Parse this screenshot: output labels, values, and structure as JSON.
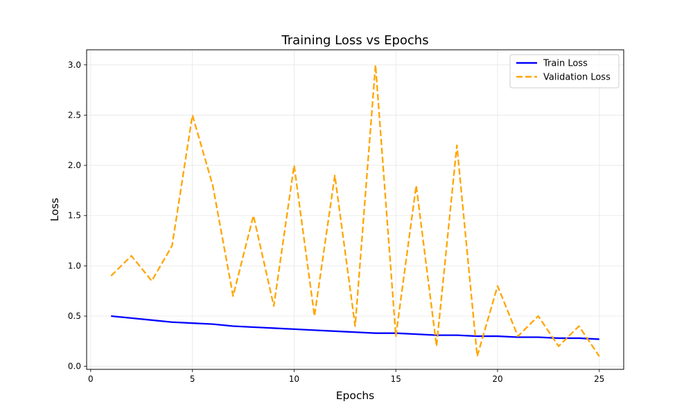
{
  "chart_data": {
    "type": "line",
    "title": "Training Loss vs Epochs",
    "xlabel": "Epochs",
    "ylabel": "Loss",
    "xlim": [
      -0.2,
      26.2
    ],
    "ylim": [
      -0.03,
      3.15
    ],
    "xticks": [
      0,
      5,
      10,
      15,
      20,
      25
    ],
    "yticks": [
      0.0,
      0.5,
      1.0,
      1.5,
      2.0,
      2.5,
      3.0
    ],
    "xtick_labels": [
      "0",
      "5",
      "10",
      "15",
      "20",
      "25"
    ],
    "ytick_labels": [
      "0.0",
      "0.5",
      "1.0",
      "1.5",
      "2.0",
      "2.5",
      "3.0"
    ],
    "grid": true,
    "legend_position": "top-right",
    "x": [
      1,
      2,
      3,
      4,
      5,
      6,
      7,
      8,
      9,
      10,
      11,
      12,
      13,
      14,
      15,
      16,
      17,
      18,
      19,
      20,
      21,
      22,
      23,
      24,
      25
    ],
    "series": [
      {
        "name": "Train Loss",
        "color": "#0000ff",
        "style": "solid",
        "values": [
          0.5,
          0.48,
          0.46,
          0.44,
          0.43,
          0.42,
          0.4,
          0.39,
          0.38,
          0.37,
          0.36,
          0.35,
          0.34,
          0.33,
          0.33,
          0.32,
          0.31,
          0.31,
          0.3,
          0.3,
          0.29,
          0.29,
          0.28,
          0.28,
          0.27
        ]
      },
      {
        "name": "Validation Loss",
        "color": "#ffa500",
        "style": "dashed",
        "values": [
          0.9,
          1.1,
          0.85,
          1.2,
          2.5,
          1.8,
          0.7,
          1.5,
          0.6,
          2.0,
          0.5,
          1.9,
          0.4,
          3.0,
          0.3,
          1.8,
          0.2,
          2.2,
          0.1,
          0.8,
          0.3,
          0.5,
          0.2,
          0.4,
          0.1
        ]
      }
    ]
  }
}
